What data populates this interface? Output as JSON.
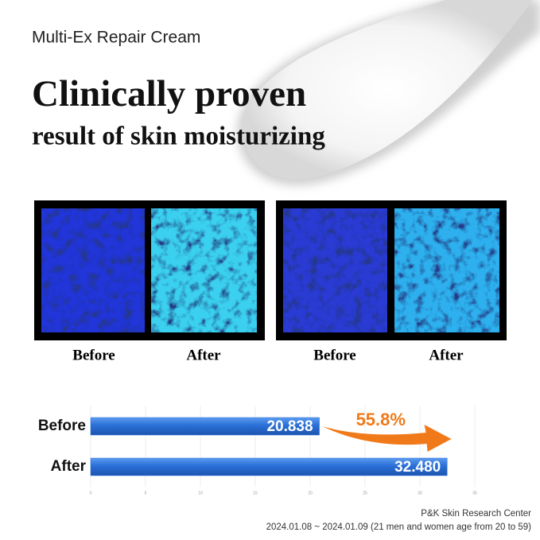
{
  "product": "Multi-Ex Repair Cream",
  "headline": "Clinically proven",
  "subheadline": "result of skin moisturizing",
  "panels": [
    [
      "Before",
      "After"
    ],
    [
      "Before",
      "After"
    ]
  ],
  "footer": {
    "source": "P&K Skin Research Center",
    "note": "2024.01.08 ~ 2024.01.09 (21 men and women age from 20 to 59)"
  },
  "chart_data": {
    "type": "hbar",
    "categories": [
      "Before",
      "After"
    ],
    "values": [
      20.838,
      32.48
    ],
    "value_labels": [
      "20.838",
      "32.480"
    ],
    "color": "#2a6fd6",
    "xlim": [
      0,
      35
    ],
    "xticks": [
      0,
      5,
      10,
      15,
      20,
      25,
      30,
      35
    ],
    "grid": true,
    "annotation": "55.8%",
    "annotation_color": "#f07a1a"
  }
}
